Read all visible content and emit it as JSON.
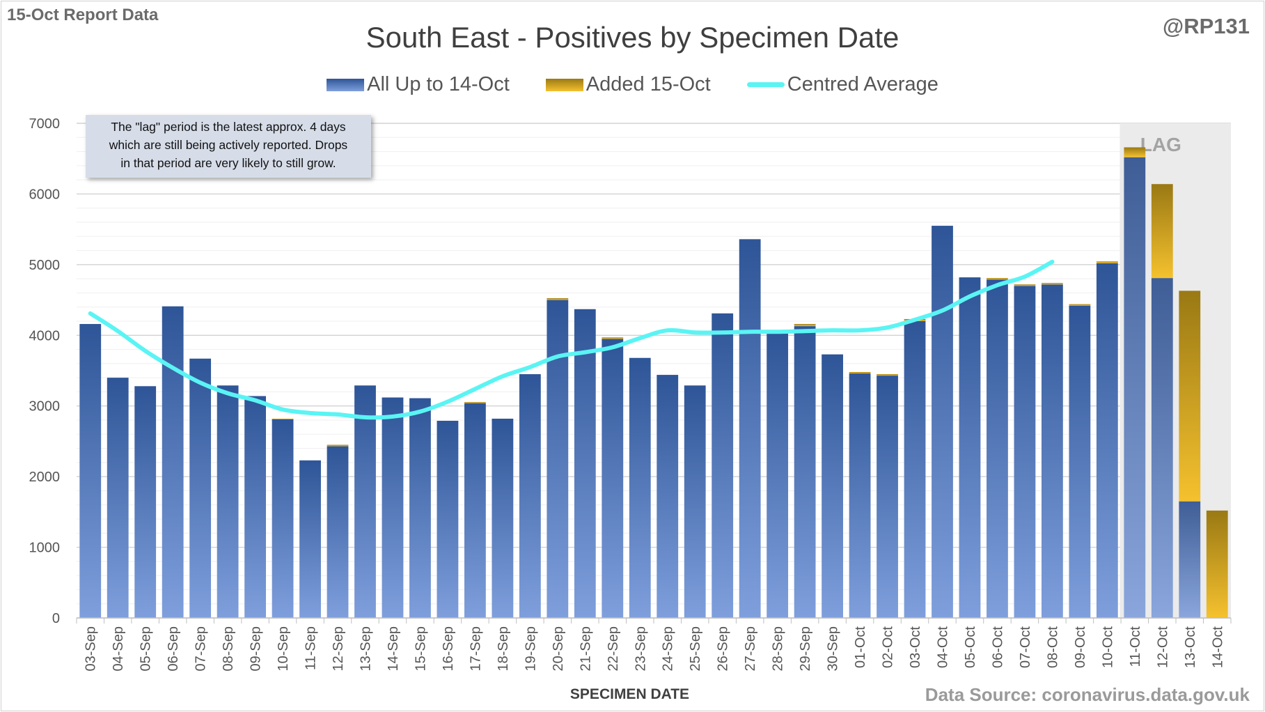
{
  "header": {
    "report_label": "15-Oct Report Data",
    "handle": "@RP131",
    "source": "Data Source: coronavirus.data.gov.uk"
  },
  "note": {
    "line1": "The \"lag\" period is the latest approx. 4 days",
    "line2": "which are still being actively reported. Drops",
    "line3": "in that period are very likely to still grow."
  },
  "colors": {
    "base_top": "#2e5597",
    "base_bottom": "#7f9fdc",
    "added_top": "#9a7914",
    "added_bottom": "#f5c12e",
    "average": "#5af4f4",
    "lag_shade": "#ebebeb"
  },
  "chart_data": {
    "type": "bar",
    "title": "South East - Positives by Specimen Date",
    "xlabel": "SPECIMEN DATE",
    "ylabel": "",
    "ylim": [
      0,
      7000
    ],
    "yticks": [
      0,
      1000,
      2000,
      3000,
      4000,
      5000,
      6000,
      7000
    ],
    "legend_position": "top",
    "lag_label": "LAG",
    "lag_categories": [
      "11-Oct",
      "12-Oct",
      "13-Oct",
      "14-Oct"
    ],
    "categories": [
      "03-Sep",
      "04-Sep",
      "05-Sep",
      "06-Sep",
      "07-Sep",
      "08-Sep",
      "09-Sep",
      "10-Sep",
      "11-Sep",
      "12-Sep",
      "13-Sep",
      "14-Sep",
      "15-Sep",
      "16-Sep",
      "17-Sep",
      "18-Sep",
      "19-Sep",
      "20-Sep",
      "21-Sep",
      "22-Sep",
      "23-Sep",
      "24-Sep",
      "25-Sep",
      "26-Sep",
      "27-Sep",
      "28-Sep",
      "29-Sep",
      "30-Sep",
      "01-Oct",
      "02-Oct",
      "03-Oct",
      "04-Oct",
      "05-Oct",
      "06-Oct",
      "07-Oct",
      "08-Oct",
      "09-Oct",
      "10-Oct",
      "11-Oct",
      "12-Oct",
      "13-Oct",
      "14-Oct"
    ],
    "series": [
      {
        "name": "All Up to 14-Oct",
        "values": [
          4160,
          3400,
          3280,
          4410,
          3670,
          3290,
          3140,
          2810,
          2230,
          2430,
          3290,
          3120,
          3110,
          2790,
          3040,
          2820,
          3450,
          4500,
          4370,
          3950,
          3680,
          3440,
          3290,
          4310,
          5360,
          4030,
          4130,
          3730,
          3460,
          3430,
          4200,
          5550,
          4820,
          4790,
          4700,
          4720,
          4420,
          5020,
          6520,
          4810,
          1650,
          0
        ]
      },
      {
        "name": "Added 15-Oct",
        "values": [
          0,
          0,
          0,
          0,
          0,
          0,
          0,
          10,
          0,
          20,
          0,
          0,
          0,
          0,
          15,
          0,
          0,
          25,
          0,
          20,
          0,
          0,
          0,
          0,
          0,
          0,
          30,
          0,
          20,
          20,
          30,
          0,
          0,
          20,
          20,
          20,
          20,
          25,
          140,
          1330,
          2980,
          1520
        ]
      },
      {
        "name": "Centred Average",
        "values": [
          4310,
          4060,
          3780,
          3540,
          3330,
          3180,
          3080,
          2950,
          2900,
          2880,
          2840,
          2850,
          2920,
          3060,
          3240,
          3420,
          3550,
          3700,
          3760,
          3830,
          3960,
          4070,
          4040,
          4040,
          4050,
          4050,
          4060,
          4070,
          4070,
          4110,
          4220,
          4350,
          4550,
          4710,
          4830,
          5040,
          null,
          null,
          null,
          null,
          null,
          null
        ]
      }
    ]
  }
}
